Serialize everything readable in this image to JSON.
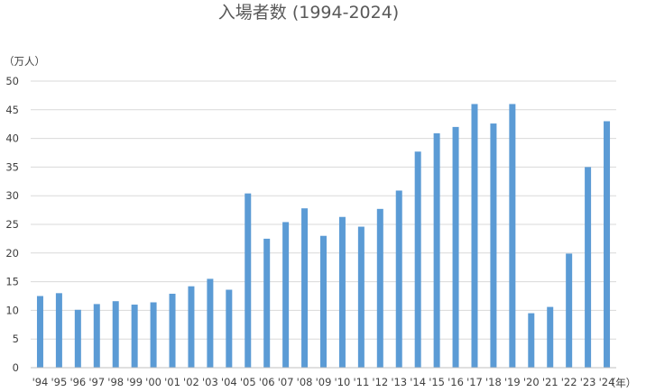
{
  "chart_data": {
    "type": "bar",
    "title": "入場者数 (1994-2024)",
    "ylabel": "（万人）",
    "xlabel": "（年）",
    "ylim": [
      0,
      50
    ],
    "yticks": [
      0,
      5,
      10,
      15,
      20,
      25,
      30,
      35,
      40,
      45,
      50
    ],
    "grid": true,
    "legend": "none",
    "bar_color": "#5b9bd5",
    "categories": [
      "'94",
      "'95",
      "'96",
      "'97",
      "'98",
      "'99",
      "'00",
      "'01",
      "'02",
      "'03",
      "'04",
      "'05",
      "'06",
      "'07",
      "'08",
      "'09",
      "'10",
      "'11",
      "'12",
      "'13",
      "'14",
      "'15",
      "'16",
      "'17",
      "'18",
      "'19",
      "'20",
      "'21",
      "'22",
      "'23",
      "'24"
    ],
    "values": [
      12.5,
      13.0,
      10.1,
      11.1,
      11.6,
      11.0,
      11.4,
      12.9,
      14.2,
      15.5,
      13.6,
      30.4,
      22.5,
      25.4,
      27.8,
      23.0,
      26.3,
      24.6,
      27.7,
      30.9,
      37.7,
      40.9,
      42.0,
      46.0,
      42.6,
      46.0,
      9.5,
      10.6,
      19.9,
      35.0,
      43.0
    ]
  }
}
